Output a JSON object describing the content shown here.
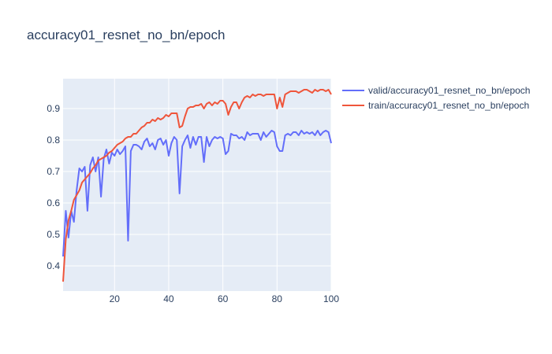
{
  "chart_data": {
    "type": "line",
    "title": "accuracy01_resnet_no_bn/epoch",
    "xlabel": "",
    "ylabel": "",
    "xlim": [
      1,
      100
    ],
    "ylim": [
      0.32,
      0.995
    ],
    "xticks": [
      20,
      40,
      60,
      80,
      100
    ],
    "yticks": [
      0.4,
      0.5,
      0.6,
      0.7,
      0.8,
      0.9
    ],
    "xtick_labels": [
      "20",
      "40",
      "60",
      "80",
      "100"
    ],
    "ytick_labels": [
      "0.4",
      "0.5",
      "0.6",
      "0.7",
      "0.8",
      "0.9"
    ],
    "grid": true,
    "legend_position": "right",
    "background": "#e5ecf6",
    "x": [
      1,
      2,
      3,
      4,
      5,
      6,
      7,
      8,
      9,
      10,
      11,
      12,
      13,
      14,
      15,
      16,
      17,
      18,
      19,
      20,
      21,
      22,
      23,
      24,
      25,
      26,
      27,
      28,
      29,
      30,
      31,
      32,
      33,
      34,
      35,
      36,
      37,
      38,
      39,
      40,
      41,
      42,
      43,
      44,
      45,
      46,
      47,
      48,
      49,
      50,
      51,
      52,
      53,
      54,
      55,
      56,
      57,
      58,
      59,
      60,
      61,
      62,
      63,
      64,
      65,
      66,
      67,
      68,
      69,
      70,
      71,
      72,
      73,
      74,
      75,
      76,
      77,
      78,
      79,
      80,
      81,
      82,
      83,
      84,
      85,
      86,
      87,
      88,
      89,
      90,
      91,
      92,
      93,
      94,
      95,
      96,
      97,
      98,
      99,
      100
    ],
    "series": [
      {
        "name": "valid/accuracy01_resnet_no_bn/epoch",
        "color": "#636efa",
        "values": [
          0.43,
          0.575,
          0.49,
          0.575,
          0.54,
          0.64,
          0.71,
          0.7,
          0.715,
          0.575,
          0.72,
          0.745,
          0.7,
          0.745,
          0.62,
          0.74,
          0.77,
          0.725,
          0.76,
          0.75,
          0.77,
          0.755,
          0.765,
          0.78,
          0.48,
          0.765,
          0.785,
          0.785,
          0.78,
          0.77,
          0.795,
          0.805,
          0.78,
          0.79,
          0.77,
          0.8,
          0.805,
          0.785,
          0.8,
          0.75,
          0.79,
          0.81,
          0.8,
          0.63,
          0.78,
          0.8,
          0.815,
          0.775,
          0.81,
          0.785,
          0.81,
          0.81,
          0.73,
          0.81,
          0.78,
          0.8,
          0.81,
          0.805,
          0.81,
          0.805,
          0.755,
          0.765,
          0.82,
          0.815,
          0.815,
          0.805,
          0.81,
          0.8,
          0.825,
          0.815,
          0.82,
          0.82,
          0.82,
          0.8,
          0.825,
          0.81,
          0.82,
          0.83,
          0.825,
          0.78,
          0.765,
          0.765,
          0.815,
          0.82,
          0.815,
          0.825,
          0.825,
          0.815,
          0.83,
          0.82,
          0.825,
          0.82,
          0.825,
          0.815,
          0.83,
          0.815,
          0.825,
          0.83,
          0.825,
          0.79
        ]
      },
      {
        "name": "train/accuracy01_resnet_no_bn/epoch",
        "color": "#ef553b",
        "values": [
          0.35,
          0.485,
          0.545,
          0.575,
          0.61,
          0.625,
          0.64,
          0.665,
          0.675,
          0.685,
          0.695,
          0.71,
          0.72,
          0.735,
          0.74,
          0.745,
          0.75,
          0.76,
          0.765,
          0.775,
          0.785,
          0.79,
          0.795,
          0.805,
          0.81,
          0.81,
          0.82,
          0.82,
          0.83,
          0.84,
          0.845,
          0.855,
          0.855,
          0.865,
          0.86,
          0.87,
          0.865,
          0.87,
          0.88,
          0.875,
          0.885,
          0.885,
          0.885,
          0.84,
          0.845,
          0.875,
          0.9,
          0.905,
          0.905,
          0.91,
          0.91,
          0.915,
          0.9,
          0.915,
          0.92,
          0.91,
          0.92,
          0.915,
          0.925,
          0.925,
          0.915,
          0.88,
          0.905,
          0.92,
          0.92,
          0.9,
          0.92,
          0.935,
          0.94,
          0.935,
          0.945,
          0.94,
          0.945,
          0.945,
          0.94,
          0.945,
          0.945,
          0.945,
          0.945,
          0.9,
          0.935,
          0.905,
          0.945,
          0.95,
          0.955,
          0.955,
          0.955,
          0.95,
          0.955,
          0.96,
          0.96,
          0.955,
          0.95,
          0.96,
          0.955,
          0.96,
          0.96,
          0.955,
          0.96,
          0.945
        ]
      }
    ]
  }
}
